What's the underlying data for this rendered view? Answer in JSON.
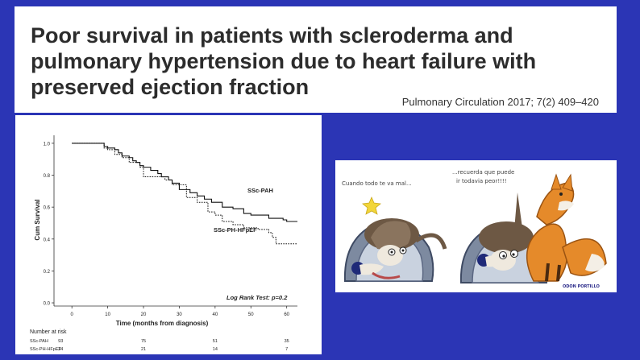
{
  "slide": {
    "title": "Poor survival in patients with scleroderma and\npulmonary hypertension due to heart failure with\npreserved ejection fraction",
    "citation": "Pulmonary Circulation 2017; 7(2) 409–420"
  },
  "chart_data": {
    "type": "line",
    "title": "",
    "xlabel": "Time (months from diagnosis)",
    "ylabel": "Cum Survival",
    "xlim": [
      -5,
      63
    ],
    "ylim": [
      -0.02,
      1.05
    ],
    "xticks": [
      0,
      10,
      20,
      30,
      40,
      50,
      60
    ],
    "yticks": [
      0.0,
      0.2,
      0.4,
      0.6,
      0.8,
      1.0
    ],
    "ytick_labels": [
      "0.0",
      "0.2",
      "0.4",
      "0.6",
      "0.8",
      "1.0"
    ],
    "grid": false,
    "annotation": "Log Rank Test: p=0.2",
    "series": [
      {
        "name": "SSc-PAH",
        "style": "solid",
        "x": [
          0,
          8,
          9,
          10,
          12,
          13,
          14,
          16,
          17,
          18,
          19,
          20,
          22,
          24,
          25,
          27,
          28,
          30,
          33,
          35,
          37,
          39,
          42,
          45,
          48,
          50,
          55,
          59,
          60,
          63
        ],
        "y": [
          1.0,
          1.0,
          0.98,
          0.97,
          0.96,
          0.94,
          0.92,
          0.91,
          0.89,
          0.88,
          0.86,
          0.85,
          0.83,
          0.81,
          0.79,
          0.77,
          0.75,
          0.71,
          0.69,
          0.67,
          0.65,
          0.63,
          0.6,
          0.59,
          0.56,
          0.55,
          0.53,
          0.52,
          0.51,
          0.51
        ]
      },
      {
        "name": "SSc-PH-HFpEF",
        "style": "dashed",
        "x": [
          0,
          8,
          9,
          10,
          12,
          14,
          16,
          19,
          20,
          26,
          28,
          32,
          35,
          38,
          40,
          42,
          45,
          48,
          52,
          55,
          56,
          57,
          63
        ],
        "y": [
          1.0,
          1.0,
          0.97,
          0.96,
          0.93,
          0.91,
          0.88,
          0.85,
          0.79,
          0.77,
          0.74,
          0.66,
          0.63,
          0.57,
          0.55,
          0.51,
          0.49,
          0.47,
          0.46,
          0.44,
          0.41,
          0.37,
          0.37
        ]
      }
    ],
    "risk_table": {
      "title": "Number at risk",
      "rows": [
        {
          "label": "SSc-PAH",
          "values": [
            "93",
            "75",
            "51",
            "35"
          ]
        },
        {
          "label": "SSc-PH-HFpEF",
          "values": [
            "24",
            "21",
            "14",
            "7"
          ]
        }
      ],
      "at_x": [
        0,
        20,
        40,
        60
      ]
    }
  },
  "cartoon": {
    "left_caption": "Cuando todo te va mal...",
    "right_caption_line1": "...recuerda que puede",
    "right_caption_line2": "ir todavia peor!!!!",
    "signature": "ODON PORTILLO"
  }
}
